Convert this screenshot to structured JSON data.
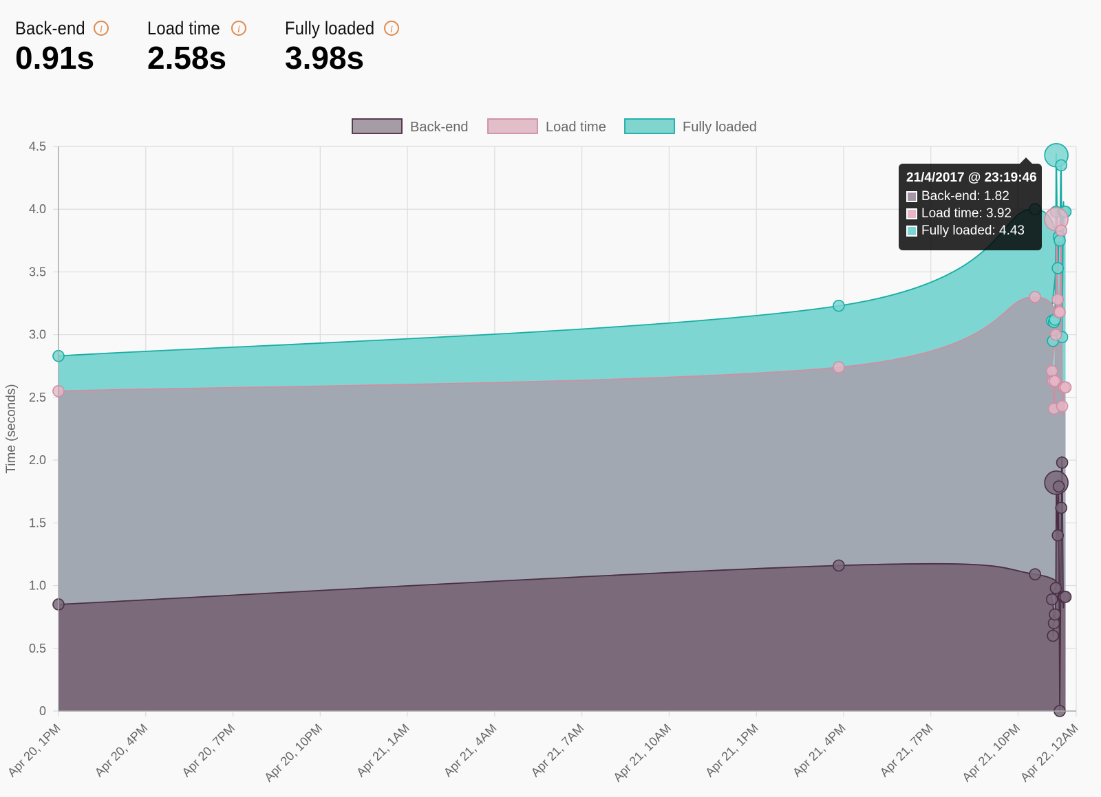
{
  "metrics": [
    {
      "label": "Back-end",
      "value": "0.91s"
    },
    {
      "label": "Load time",
      "value": "2.58s"
    },
    {
      "label": "Fully loaded",
      "value": "3.98s"
    }
  ],
  "info_icon_glyph": "i",
  "tooltip": {
    "title": "21/4/2017 @ 23:19:46",
    "rows": [
      "Back-end: 1.82",
      "Load time: 3.92",
      "Fully loaded: 4.43"
    ]
  },
  "colors": {
    "backend_fill": "#7a6a7a",
    "backend_line": "#4a2e45",
    "load_fill": "#a2a8b2",
    "load_line": "#cf8ea3",
    "full_fill": "#7dd6d2",
    "full_line": "#17ada3",
    "accent": "#e08a4d"
  },
  "chart_data": {
    "type": "area",
    "ylabel": "Time (seconds)",
    "ylim": [
      0,
      4.5
    ],
    "yticks": [
      "0",
      "0.5",
      "1.0",
      "1.5",
      "2.0",
      "2.5",
      "3.0",
      "3.5",
      "4.0",
      "4.5"
    ],
    "xticks": [
      "Apr 20, 1PM",
      "Apr 20, 4PM",
      "Apr 20, 7PM",
      "Apr 20, 10PM",
      "Apr 21, 1AM",
      "Apr 21, 4AM",
      "Apr 21, 7AM",
      "Apr 21, 10AM",
      "Apr 21, 1PM",
      "Apr 21, 4PM",
      "Apr 21, 7PM",
      "Apr 21, 10PM",
      "Apr 22, 12AM"
    ],
    "legend_position": "top",
    "grid": true,
    "series": [
      {
        "name": "Back-end",
        "x": [
          "Apr 20 13:00",
          "Apr 21 15:50",
          "Apr 21 22:35",
          "Apr 21 23:10",
          "Apr 21 23:12",
          "Apr 21 23:14",
          "Apr 21 23:16",
          "Apr 21 23:18",
          "Apr 21 23:19",
          "Apr 21 23:22",
          "Apr 21 23:24",
          "Apr 21 23:26",
          "Apr 21 23:29",
          "Apr 21 23:31",
          "Apr 21 23:33",
          "Apr 21 23:35",
          "Apr 21 23:38"
        ],
        "values": [
          0.85,
          1.16,
          1.09,
          0.89,
          0.6,
          0.7,
          0.77,
          0.98,
          1.82,
          1.4,
          1.79,
          0.0,
          1.62,
          1.98,
          0.91,
          0.91,
          0.91
        ]
      },
      {
        "name": "Load time",
        "x": [
          "Apr 20 13:00",
          "Apr 21 15:50",
          "Apr 21 22:35",
          "Apr 21 23:10",
          "Apr 21 23:12",
          "Apr 21 23:14",
          "Apr 21 23:16",
          "Apr 21 23:18",
          "Apr 21 23:19",
          "Apr 21 23:22",
          "Apr 21 23:24",
          "Apr 21 23:26",
          "Apr 21 23:29",
          "Apr 21 23:31",
          "Apr 21 23:33",
          "Apr 21 23:35",
          "Apr 21 23:38"
        ],
        "values": [
          2.55,
          2.74,
          3.3,
          2.71,
          2.63,
          2.41,
          2.63,
          3.0,
          3.92,
          3.28,
          3.18,
          3.18,
          3.83,
          2.43,
          2.58,
          2.58,
          2.58
        ]
      },
      {
        "name": "Fully loaded",
        "x": [
          "Apr 20 13:00",
          "Apr 21 15:50",
          "Apr 21 22:35",
          "Apr 21 23:10",
          "Apr 21 23:12",
          "Apr 21 23:14",
          "Apr 21 23:16",
          "Apr 21 23:18",
          "Apr 21 23:19",
          "Apr 21 23:22",
          "Apr 21 23:24",
          "Apr 21 23:26",
          "Apr 21 23:29",
          "Apr 21 23:31",
          "Apr 21 23:33",
          "Apr 21 23:35",
          "Apr 21 23:38"
        ],
        "values": [
          2.83,
          3.23,
          4.0,
          3.11,
          2.95,
          3.1,
          3.12,
          3.98,
          4.43,
          3.53,
          3.78,
          3.75,
          4.35,
          2.98,
          3.98,
          3.98,
          3.98
        ]
      }
    ]
  }
}
